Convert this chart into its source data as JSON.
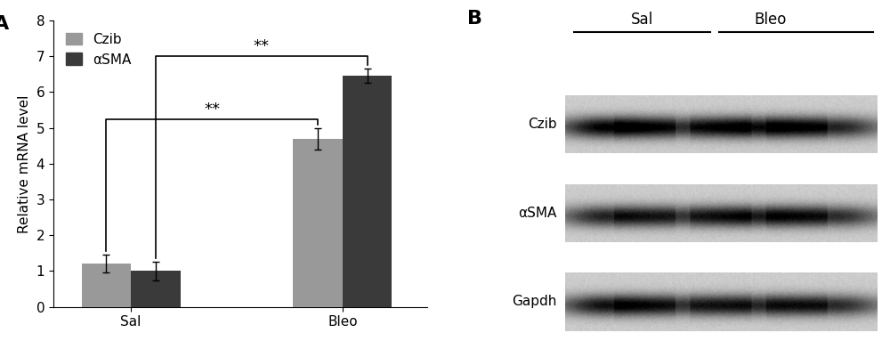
{
  "panel_A_label": "A",
  "panel_B_label": "B",
  "categories": [
    "Sal",
    "Bleo"
  ],
  "czib_values": [
    1.2,
    4.7
  ],
  "asma_values": [
    1.0,
    6.45
  ],
  "czib_errors": [
    0.25,
    0.3
  ],
  "asma_errors": [
    0.25,
    0.2
  ],
  "czib_color": "#999999",
  "asma_color": "#3a3a3a",
  "ylabel": "Relative mRNA level",
  "ylim": [
    0,
    8
  ],
  "yticks": [
    0,
    1,
    2,
    3,
    4,
    5,
    6,
    7,
    8
  ],
  "bar_width": 0.35,
  "group_positions": [
    1.0,
    2.5
  ],
  "legend_labels": [
    "Czib",
    "αSMA"
  ],
  "sig_label": "**",
  "background_color": "#ffffff",
  "fontsize_label": 11,
  "fontsize_tick": 11,
  "fontsize_legend": 11,
  "blot_labels": [
    "Czib",
    "αSMA",
    "Gapdh"
  ],
  "blot_group_labels": [
    "Sal",
    "Bleo"
  ]
}
